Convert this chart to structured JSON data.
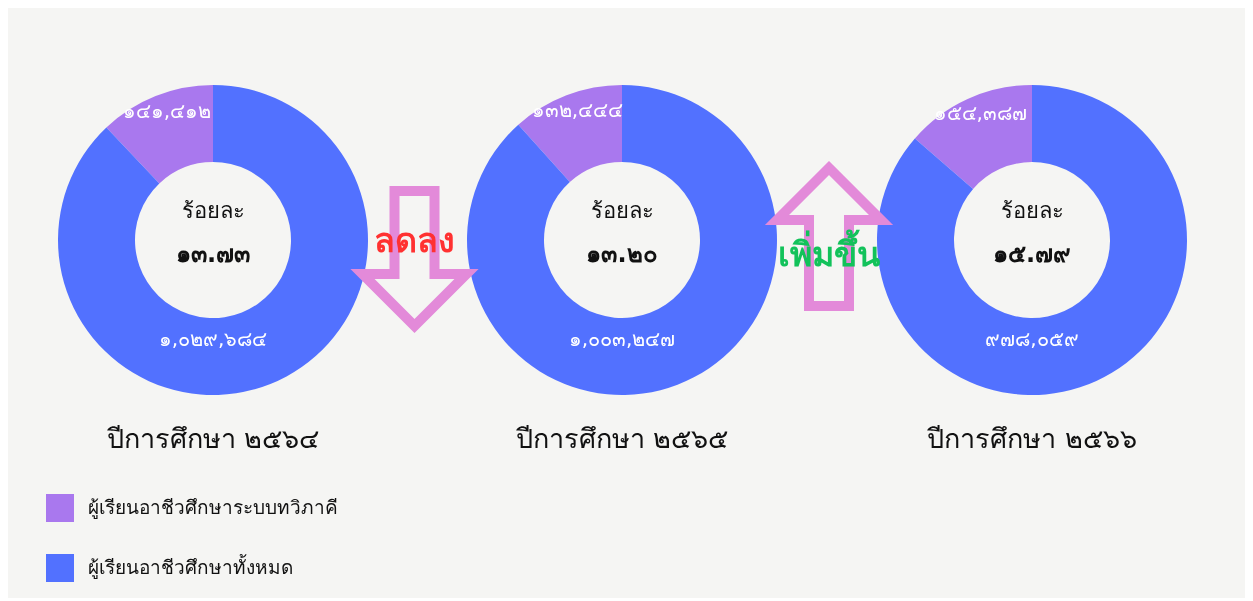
{
  "chart_data": [
    {
      "type": "donut",
      "title": "ปีการศึกษา ๒๕๖๔",
      "categories": [
        "ผู้เรียนอาชีวศึกษาระบบทวิภาคี",
        "ผู้เรียนอาชีวศึกษาทั้งหมด"
      ],
      "values": [
        141412,
        1029684
      ],
      "colors": [
        "#a978ee",
        "#5271ff"
      ],
      "value_labels": [
        "๑๔๑,๔๑๒",
        "๑,๐๒๙,๖๘๔"
      ],
      "annotations": [
        "ร้อยละ",
        "๑๓.๗๓"
      ],
      "legend": "bottom"
    },
    {
      "type": "donut",
      "title": "ปีการศึกษา ๒๕๖๕",
      "categories": [
        null,
        null
      ],
      "values": [
        132444,
        1003247
      ],
      "colors": [
        "#a978ee",
        "#5271ff"
      ],
      "value_labels": [
        "๑๓๒,๔๔๔",
        "๑,๐๐๓,๒๔๗"
      ],
      "annotations": [
        "ร้อยละ",
        "๑๓.๒๐",
        "ลดลง"
      ]
    },
    {
      "type": "donut",
      "title": "ปีการศึกษา ๒๕๖๖",
      "categories": [
        null,
        null
      ],
      "values": [
        154387,
        978059
      ],
      "colors": [
        "#a978ee",
        "#5271ff"
      ],
      "value_labels": [
        "๑๕๔,๓๘๗",
        "๙๗๘,๐๕๙"
      ],
      "annotations": [
        "ร้อยละ",
        "๑๕.๗๙",
        "เพิ่มขึ้น"
      ]
    }
  ]
}
